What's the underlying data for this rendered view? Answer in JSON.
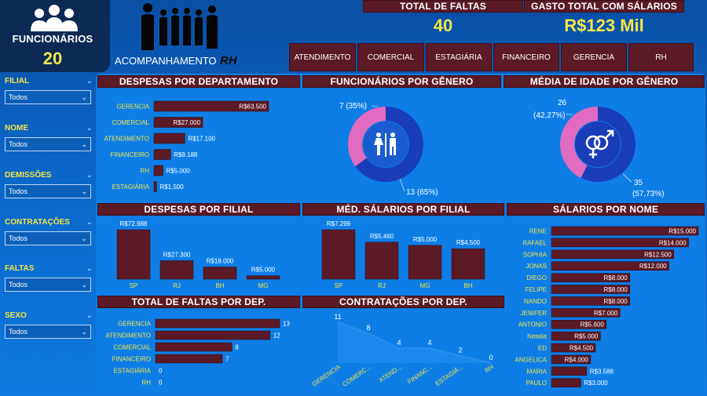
{
  "header": {
    "employees_label": "FUNCIONÁRIOS",
    "employees_count": "20",
    "subtitle_main": "ACOMPANHAMENTO",
    "subtitle_rh": "RH"
  },
  "kpis": {
    "faltas_label": "TOTAL DE FALTAS",
    "faltas_value": "40",
    "salarios_label": "GASTO TOTAL COM SÁLARIOS",
    "salarios_value": "R$123 Mil"
  },
  "nav": [
    "ATENDIMENTO",
    "COMERCIAL",
    "ESTAGIÁRIA",
    "FINANCEIRO",
    "GERENCIA",
    "RH"
  ],
  "filters": [
    {
      "label": "FILIAL",
      "value": "Todos"
    },
    {
      "label": "NOME",
      "value": "Todos"
    },
    {
      "label": "DEMISSÕES",
      "value": "Todos"
    },
    {
      "label": "CONTRATAÇÕES",
      "value": "Todos"
    },
    {
      "label": "FALTAS",
      "value": "Todos"
    },
    {
      "label": "SEXO",
      "value": "Todos"
    }
  ],
  "titles": {
    "despesas_dep": "DESPESAS POR DEPARTAMENTO",
    "func_genero": "FUNCIONÁRIOS POR GÊNERO",
    "idade_genero": "MÉDIA DE IDADE POR GÊNERO",
    "despesas_filial": "DESPESAS POR FILIAL",
    "med_salarios_filial": "MÉD. SÁLARIOS POR FILIAL",
    "salarios_nome": "SÁLARIOS POR NOME",
    "faltas_dep": "TOTAL DE FALTAS POR DEP.",
    "contratacoes_dep": "CONTRATAÇÕES POR DEP."
  },
  "chart_data": [
    {
      "id": "despesas_dep",
      "type": "bar",
      "categories": [
        "GERENCIA",
        "COMERCIAL",
        "ATENDIMENTO",
        "FINANCEIRO",
        "RH",
        "ESTAGIÁRIA"
      ],
      "values": [
        63500,
        27000,
        17100,
        9188,
        5000,
        1500
      ],
      "labels": [
        "R$63.500",
        "R$27.000",
        "R$17.100",
        "R$9.188",
        "R$5.000",
        "R$1.500"
      ]
    },
    {
      "id": "func_genero",
      "type": "pie",
      "categories": [
        "F",
        "M"
      ],
      "values": [
        7,
        13
      ],
      "labels": [
        "7 (35%)",
        "13 (65%)"
      ],
      "colors": [
        "#e06bc0",
        "#1a3db8"
      ]
    },
    {
      "id": "idade_genero",
      "type": "pie",
      "categories": [
        "F",
        "M"
      ],
      "values": [
        26,
        35
      ],
      "labels": [
        "26",
        "(42,27%)",
        "35",
        "(57,73%)"
      ],
      "colors": [
        "#e06bc0",
        "#1a3db8"
      ]
    },
    {
      "id": "despesas_filial",
      "type": "bar",
      "categories": [
        "SP",
        "RJ",
        "BH",
        "MG"
      ],
      "values": [
        72988,
        27300,
        18000,
        5000
      ],
      "labels": [
        "R$72.988",
        "R$27.300",
        "R$18.000",
        "R$5.000"
      ]
    },
    {
      "id": "med_salarios_filial",
      "type": "bar",
      "categories": [
        "SP",
        "RJ",
        "MG",
        "BH"
      ],
      "values": [
        7299,
        5460,
        5000,
        4500
      ],
      "labels": [
        "R$7.299",
        "R$5.460",
        "R$5.000",
        "R$4.500"
      ]
    },
    {
      "id": "salarios_nome",
      "type": "bar",
      "categories": [
        "RENE",
        "RAFAEL",
        "SOPHIA",
        "JONAS",
        "DIEGO",
        "FELIPE",
        "NANDO",
        "JENIFER",
        "ANTONIO",
        "Natalia",
        "ED",
        "ANGELICA",
        "MARIA",
        "PAULO"
      ],
      "values": [
        15000,
        14000,
        12500,
        12000,
        8000,
        8000,
        8000,
        7000,
        5600,
        5000,
        4500,
        4000,
        3588,
        3000
      ],
      "labels": [
        "R$15.000",
        "R$14.000",
        "R$12.500",
        "R$12.000",
        "R$8.000",
        "R$8.000",
        "R$8.000",
        "R$7.000",
        "R$5.600",
        "R$5.000",
        "R$4.500",
        "R$4.000",
        "R$3.588",
        "R$3.000"
      ]
    },
    {
      "id": "faltas_dep",
      "type": "bar",
      "categories": [
        "GERENCIA",
        "ATENDIMENTO",
        "COMERCIAL",
        "FINANCEIRO",
        "ESTAGIÁRIA",
        "RH"
      ],
      "values": [
        13,
        12,
        8,
        7,
        0,
        0
      ]
    },
    {
      "id": "contratacoes_dep",
      "type": "area",
      "categories": [
        "GERENCIA",
        "COMERC...",
        "ATEND...",
        "FINANC...",
        "ESTAGIÁ...",
        "RH"
      ],
      "values": [
        11,
        8,
        4,
        4,
        2,
        0
      ]
    }
  ],
  "colors": {
    "bar": "#5c1a26",
    "accent_yellow": "#f3e64a",
    "female": "#e06bc0",
    "male": "#1a3db8",
    "area": "#2a8ff0"
  }
}
